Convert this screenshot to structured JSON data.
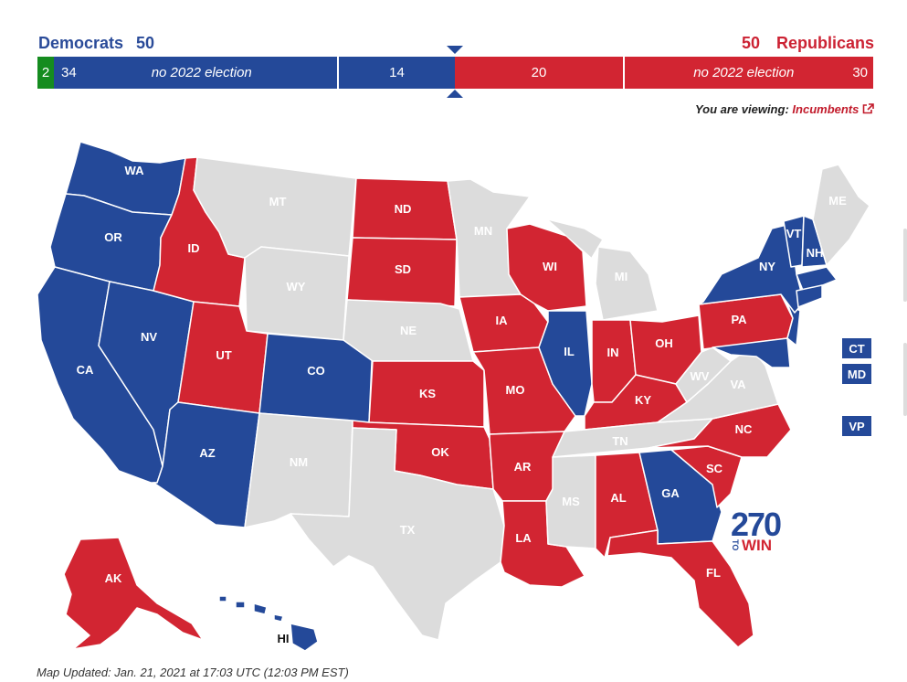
{
  "header": {
    "dem_label": "Democrats",
    "dem_total": "50",
    "rep_total": "50",
    "rep_label": "Republicans"
  },
  "bar": {
    "ind_count": "2",
    "dem_not_up_count": "34",
    "dem_not_up_label": "no 2022 election",
    "dem_up_count": "14",
    "rep_up_count": "20",
    "rep_not_up_label": "no 2022 election",
    "rep_not_up_count": "30"
  },
  "viewing": {
    "prefix": "You are viewing:",
    "link": "Incumbents"
  },
  "colors": {
    "democrat": "#244999",
    "republican": "#d22532",
    "independent": "#158c1f",
    "no_election": "#dcdcdc"
  },
  "states": {
    "WA": "WA",
    "OR": "OR",
    "CA": "CA",
    "NV": "NV",
    "ID": "ID",
    "MT": "MT",
    "WY": "WY",
    "UT": "UT",
    "AZ": "AZ",
    "CO": "CO",
    "NM": "NM",
    "ND": "ND",
    "SD": "SD",
    "NE": "NE",
    "KS": "KS",
    "OK": "OK",
    "TX": "TX",
    "MN": "MN",
    "IA": "IA",
    "MO": "MO",
    "AR": "AR",
    "LA": "LA",
    "WI": "WI",
    "IL": "IL",
    "MI": "MI",
    "IN": "IN",
    "OH": "OH",
    "KY": "KY",
    "TN": "TN",
    "MS": "MS",
    "AL": "AL",
    "GA": "GA",
    "FL": "FL",
    "SC": "SC",
    "NC": "NC",
    "VA": "VA",
    "WV": "WV",
    "PA": "PA",
    "NY": "NY",
    "VT": "VT",
    "NH": "NH",
    "ME": "ME",
    "AK": "AK",
    "HI": "HI"
  },
  "side_boxes": {
    "ct": "CT",
    "md": "MD",
    "vp": "VP"
  },
  "logo": {
    "number": "270",
    "to": "TO",
    "win": "WIN"
  },
  "footer": {
    "updated": "Map Updated: Jan. 21, 2021 at 17:03 UTC (12:03 PM EST)"
  }
}
